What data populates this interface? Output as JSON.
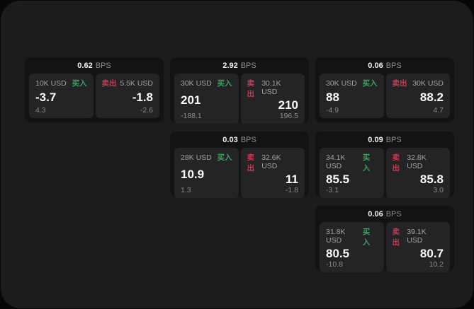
{
  "page": {
    "background": "#070708",
    "panel_background": "#1c1c1e"
  },
  "colors": {
    "buy_accent": "#3fa25e",
    "sell_accent": "#c93a4c",
    "card_background": "#131314",
    "subcard_background": "#242427"
  },
  "labels": {
    "bps_unit": "BPS",
    "buy": "买入",
    "sell": "卖出"
  },
  "cards": [
    {
      "col": 1,
      "row": 1,
      "bps": "0.62",
      "buy": {
        "amount": "10K USD",
        "value": "-3.7",
        "delta": "4.3"
      },
      "sell": {
        "amount": "5.5K USD",
        "value": "-1.8",
        "delta": "-2.6"
      }
    },
    {
      "col": 2,
      "row": 1,
      "bps": "2.92",
      "buy": {
        "amount": "30K USD",
        "value": "201",
        "delta": "-188.1"
      },
      "sell": {
        "amount": "30.1K USD",
        "value": "210",
        "delta": "196.5"
      }
    },
    {
      "col": 3,
      "row": 1,
      "bps": "0.06",
      "buy": {
        "amount": "30K USD",
        "value": "88",
        "delta": "-4.9"
      },
      "sell": {
        "amount": "30K USD",
        "value": "88.2",
        "delta": "4.7"
      }
    },
    {
      "col": 2,
      "row": 2,
      "bps": "0.03",
      "buy": {
        "amount": "28K USD",
        "value": "10.9",
        "delta": "1.3"
      },
      "sell": {
        "amount": "32.6K USD",
        "value": "11",
        "delta": "-1.8"
      }
    },
    {
      "col": 3,
      "row": 2,
      "bps": "0.09",
      "buy": {
        "amount": "34.1K USD",
        "value": "85.5",
        "delta": "-3.1"
      },
      "sell": {
        "amount": "32.8K USD",
        "value": "85.8",
        "delta": "3.0"
      }
    },
    {
      "col": 3,
      "row": 3,
      "bps": "0.06",
      "buy": {
        "amount": "31.8K USD",
        "value": "80.5",
        "delta": "-10.8"
      },
      "sell": {
        "amount": "39.1K USD",
        "value": "80.7",
        "delta": "10.2"
      }
    }
  ]
}
